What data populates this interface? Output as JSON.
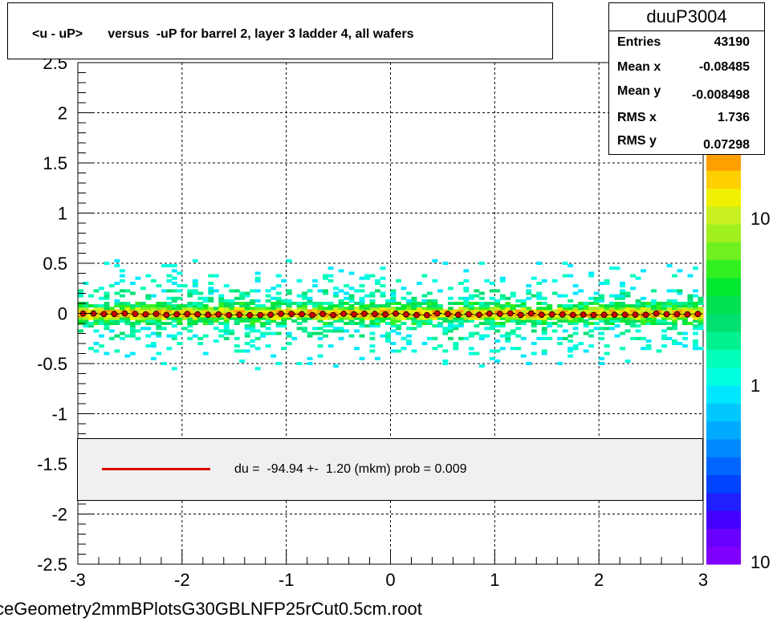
{
  "title": "<u - uP>       versus  -uP for barrel 2, layer 3 ladder 4, all wafers",
  "stats": {
    "name": "duuP3004",
    "rows": [
      {
        "label": "Entries",
        "value": "43190"
      },
      {
        "label": "Mean x",
        "value": "-0.08485"
      },
      {
        "label": "Mean y",
        "value": "-0.008498"
      },
      {
        "label": "RMS x",
        "value": "1.736"
      },
      {
        "label": "RMS y",
        "value": "0.07298"
      }
    ]
  },
  "legend": {
    "text": "du =  -94.94 +-  1.20 (mkm) prob = 0.009",
    "line_color": "#dd0000"
  },
  "footer": "ceGeometry2mmBPlotsG30GBLNFP25rCut0.5cm.root",
  "chart_data": {
    "type": "heatmap",
    "title": "<u - uP>       versus  -uP for barrel 2, layer 3 ladder 4, all wafers",
    "xlabel": "",
    "ylabel": "",
    "xlim": [
      -3,
      3
    ],
    "ylim": [
      -2.5,
      2.5
    ],
    "x_ticks": [
      "-3",
      "-2",
      "-1",
      "0",
      "1",
      "2",
      "3"
    ],
    "y_ticks": [
      "-2.5",
      "-2",
      "-1.5",
      "-1",
      "-0.5",
      "0",
      "0.5",
      "1",
      "1.5",
      "2",
      "2.5"
    ],
    "grid": true,
    "colorbar": {
      "scale": "log",
      "tick_labels": [
        "10",
        "1",
        "10"
      ],
      "colors": [
        "#8000ff",
        "#6a00ff",
        "#4400ff",
        "#2020ff",
        "#0044ff",
        "#0066ff",
        "#0088ff",
        "#00aaff",
        "#00c8ff",
        "#00e8ff",
        "#00ffe0",
        "#00ffb8",
        "#00f090",
        "#00e070",
        "#00e050",
        "#00e830",
        "#30f020",
        "#70f020",
        "#a0f020",
        "#c8f020",
        "#f0f000",
        "#ffd000",
        "#ffa000"
      ]
    },
    "profile": {
      "marker_color": "#cc0000",
      "y_mean": -0.0085,
      "bins": 60
    },
    "fit_line": {
      "value_mkm": -94.94,
      "error_mkm": 1.2,
      "prob": 0.009
    }
  }
}
